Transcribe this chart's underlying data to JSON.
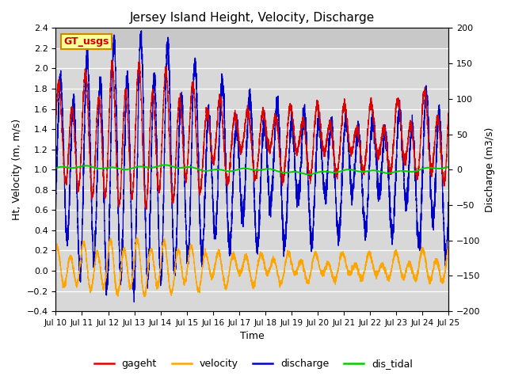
{
  "title": "Jersey Island Height, Velocity, Discharge",
  "xlabel": "Time",
  "ylabel_left": "Ht, Velocity (m, m/s)",
  "ylabel_right": "Discharge (m3/s)",
  "ylim_left": [
    -0.4,
    2.4
  ],
  "ylim_right": [
    -200,
    200
  ],
  "xlim": [
    0,
    15
  ],
  "xtick_labels": [
    "Jul 10",
    "Jul 11",
    "Jul 12",
    "Jul 13",
    "Jul 14",
    "Jul 15",
    "Jul 16",
    "Jul 17",
    "Jul 18",
    "Jul 19",
    "Jul 20",
    "Jul 21",
    "Jul 22",
    "Jul 23",
    "Jul 24",
    "Jul 25"
  ],
  "yticks_left": [
    -0.4,
    -0.2,
    0.0,
    0.2,
    0.4,
    0.6,
    0.8,
    1.0,
    1.2,
    1.4,
    1.6,
    1.8,
    2.0,
    2.2,
    2.4
  ],
  "yticks_right": [
    -200,
    -150,
    -100,
    -50,
    0,
    50,
    100,
    150,
    200
  ],
  "legend_labels": [
    "gageht",
    "velocity",
    "discharge",
    "dis_tidal"
  ],
  "legend_colors": [
    "#dd0000",
    "#ffa500",
    "#0000cc",
    "#00cc00"
  ],
  "line_colors": {
    "gageht": "#dd0000",
    "velocity": "#ffa500",
    "discharge": "#0000cc",
    "dis_tidal": "#00cc00"
  },
  "annotation_text": "GT_usgs",
  "annotation_bg": "#ffff99",
  "annotation_border": "#cc8800",
  "plot_bg": "#d8d8d8",
  "plot_bg_upper": "#c8c8c8",
  "upper_band_ylim": [
    2.2,
    2.4
  ]
}
